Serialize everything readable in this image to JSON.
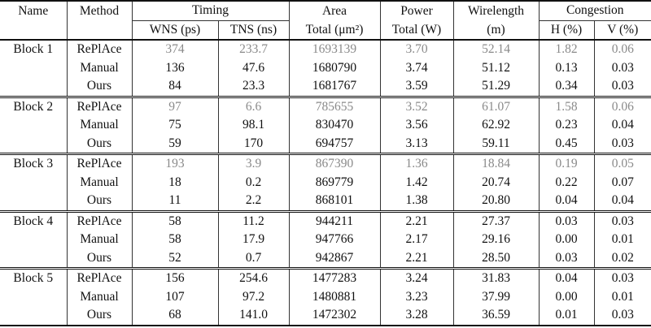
{
  "table": {
    "header": {
      "top": [
        "Name",
        "Method",
        "Timing",
        "Area",
        "Power",
        "Wirelength",
        "Congestion"
      ],
      "sub": [
        "WNS (ps)",
        "TNS (ns)",
        "Total (μm²)",
        "Total (W)",
        "(m)",
        "H (%)",
        "V (%)"
      ]
    },
    "blocks": [
      {
        "name": "Block 1",
        "rows": [
          {
            "method": "RePlAce",
            "color": "#8a8a8a",
            "values": [
              "374",
              "233.7",
              "1693139",
              "3.70",
              "52.14",
              "1.82",
              "0.06"
            ]
          },
          {
            "method": "Manual",
            "color": "#111111",
            "values": [
              "136",
              "47.6",
              "1680790",
              "3.74",
              "51.12",
              "0.13",
              "0.03"
            ]
          },
          {
            "method": "Ours",
            "color": "#111111",
            "values": [
              "84",
              "23.3",
              "1681767",
              "3.59",
              "51.29",
              "0.34",
              "0.03"
            ]
          }
        ]
      },
      {
        "name": "Block 2",
        "rows": [
          {
            "method": "RePlAce",
            "color": "#8a8a8a",
            "values": [
              "97",
              "6.6",
              "785655",
              "3.52",
              "61.07",
              "1.58",
              "0.06"
            ]
          },
          {
            "method": "Manual",
            "color": "#111111",
            "values": [
              "75",
              "98.1",
              "830470",
              "3.56",
              "62.92",
              "0.23",
              "0.04"
            ]
          },
          {
            "method": "Ours",
            "color": "#111111",
            "values": [
              "59",
              "170",
              "694757",
              "3.13",
              "59.11",
              "0.45",
              "0.03"
            ]
          }
        ]
      },
      {
        "name": "Block 3",
        "rows": [
          {
            "method": "RePlAce",
            "color": "#8a8a8a",
            "values": [
              "193",
              "3.9",
              "867390",
              "1.36",
              "18.84",
              "0.19",
              "0.05"
            ]
          },
          {
            "method": "Manual",
            "color": "#111111",
            "values": [
              "18",
              "0.2",
              "869779",
              "1.42",
              "20.74",
              "0.22",
              "0.07"
            ]
          },
          {
            "method": "Ours",
            "color": "#111111",
            "values": [
              "11",
              "2.2",
              "868101",
              "1.38",
              "20.80",
              "0.04",
              "0.04"
            ]
          }
        ]
      },
      {
        "name": "Block 4",
        "rows": [
          {
            "method": "RePlAce",
            "color": "#111111",
            "values": [
              "58",
              "11.2",
              "944211",
              "2.21",
              "27.37",
              "0.03",
              "0.03"
            ]
          },
          {
            "method": "Manual",
            "color": "#111111",
            "values": [
              "58",
              "17.9",
              "947766",
              "2.17",
              "29.16",
              "0.00",
              "0.01"
            ]
          },
          {
            "method": "Ours",
            "color": "#111111",
            "values": [
              "52",
              "0.7",
              "942867",
              "2.21",
              "28.50",
              "0.03",
              "0.02"
            ]
          }
        ]
      },
      {
        "name": "Block 5",
        "rows": [
          {
            "method": "RePlAce",
            "color": "#111111",
            "values": [
              "156",
              "254.6",
              "1477283",
              "3.24",
              "31.83",
              "0.04",
              "0.03"
            ]
          },
          {
            "method": "Manual",
            "color": "#111111",
            "values": [
              "107",
              "97.2",
              "1480881",
              "3.23",
              "37.99",
              "0.00",
              "0.01"
            ]
          },
          {
            "method": "Ours",
            "color": "#111111",
            "values": [
              "68",
              "141.0",
              "1472302",
              "3.28",
              "36.59",
              "0.01",
              "0.03"
            ]
          }
        ]
      }
    ]
  }
}
